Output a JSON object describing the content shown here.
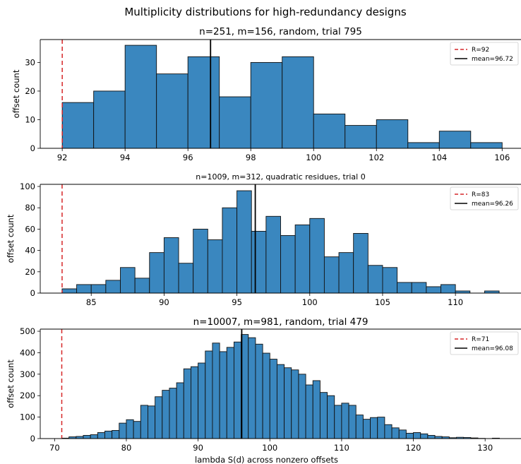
{
  "figure": {
    "title": "Multiplicity distributions for high-redundancy designs"
  },
  "colors": {
    "bar_fill": "#3a87bf",
    "bar_edge": "#111111",
    "r_line": "#d62728",
    "mean_line": "#000000"
  },
  "chart_data": [
    {
      "type": "bar",
      "title": "n=251, m=156, random, trial 795",
      "title_style": "large",
      "xlabel": "",
      "ylabel": "offset count",
      "xlim": [
        91.3,
        106.6
      ],
      "ylim": [
        0,
        38
      ],
      "xticks": [
        92,
        94,
        96,
        98,
        100,
        102,
        104,
        106
      ],
      "yticks": [
        0,
        10,
        20,
        30
      ],
      "bin_start": 92,
      "bin_width": 1,
      "values": [
        16,
        20,
        36,
        26,
        32,
        18,
        30,
        32,
        12,
        8,
        10,
        2,
        6,
        2
      ],
      "r_value": 92,
      "mean_value": 96.72,
      "legend": [
        "R=92",
        "mean=96.72"
      ],
      "legend_position": "upper right"
    },
    {
      "type": "bar",
      "title": "n=1009, m=312, quadratic residues, trial 0",
      "title_style": "small",
      "xlabel": "",
      "ylabel": "offset count",
      "xlim": [
        81.5,
        114.5
      ],
      "ylim": [
        0,
        102
      ],
      "xticks": [
        85,
        90,
        95,
        100,
        105,
        110
      ],
      "yticks": [
        0,
        20,
        40,
        60,
        80,
        100
      ],
      "bin_start": 83,
      "bin_width": 1.0,
      "values": [
        4,
        8,
        8,
        12,
        24,
        14,
        38,
        52,
        28,
        60,
        50,
        80,
        96,
        58,
        72,
        54,
        64,
        70,
        34,
        38,
        56,
        26,
        24,
        10,
        10,
        6,
        8,
        2,
        0,
        2
      ],
      "r_value": 83,
      "mean_value": 96.26,
      "legend": [
        "R=83",
        "mean=96.26"
      ],
      "legend_position": "upper right"
    },
    {
      "type": "bar",
      "title": "n=10007, m=981, random, trial 479",
      "title_style": "large",
      "xlabel": "lambda  S(d) across nonzero offsets",
      "ylabel": "offset count",
      "xlim": [
        68,
        135
      ],
      "ylim": [
        0,
        510
      ],
      "xticks": [
        70,
        80,
        90,
        100,
        110,
        120,
        130
      ],
      "yticks": [
        0,
        100,
        200,
        300,
        400,
        500
      ],
      "bin_start": 71,
      "bin_width": 1.0,
      "values": [
        2,
        8,
        10,
        15,
        18,
        28,
        35,
        38,
        72,
        88,
        80,
        155,
        152,
        195,
        225,
        235,
        260,
        325,
        335,
        352,
        408,
        445,
        405,
        425,
        450,
        485,
        470,
        440,
        398,
        370,
        345,
        330,
        320,
        300,
        250,
        270,
        215,
        200,
        155,
        165,
        155,
        110,
        90,
        98,
        100,
        65,
        50,
        40,
        25,
        28,
        22,
        15,
        10,
        8,
        4,
        6,
        5,
        3,
        1,
        0,
        2
      ],
      "r_value": 71,
      "mean_value": 96.08,
      "legend": [
        "R=71",
        "mean=96.08"
      ],
      "legend_position": "upper right"
    }
  ]
}
